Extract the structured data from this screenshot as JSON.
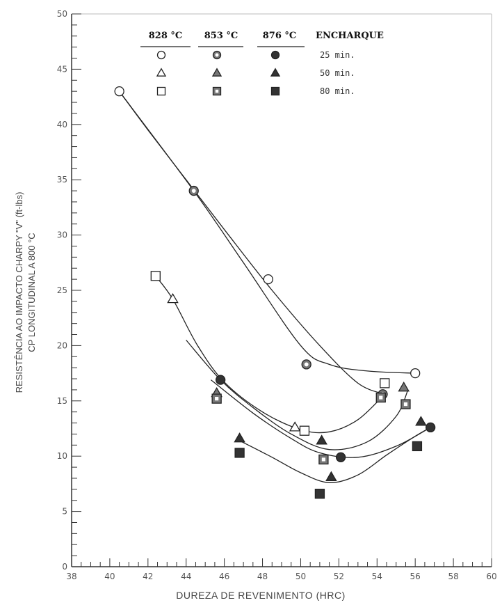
{
  "chart_data": {
    "type": "scatter",
    "xlabel": "DUREZA DE REVENIMENTO (HRC)",
    "ylabel": [
      "RESISTÊNCIA AO IMPACTO CHARPY \"V\" (ft-lbs)",
      "CP LONGITUDINAL A 800 °C"
    ],
    "xlim": [
      38,
      60
    ],
    "ylim": [
      0,
      50
    ],
    "x_ticks": [
      38,
      40,
      42,
      44,
      46,
      48,
      50,
      52,
      54,
      56,
      58,
      60
    ],
    "y_ticks": [
      0,
      5,
      10,
      15,
      20,
      25,
      30,
      35,
      40,
      45,
      50
    ],
    "y_tick_labels": [
      "0",
      "5",
      "10",
      "15",
      "20",
      "25",
      "30",
      "35",
      "40",
      "45",
      "50"
    ],
    "legend": {
      "headers": [
        "828 °C",
        "853 °C",
        "876 °C",
        "ENCHARQUE"
      ],
      "times": [
        "25 min.",
        "50 min.",
        "80 min."
      ]
    },
    "series": [
      {
        "temperature": "828 °C",
        "time": "25 min.",
        "marker": "circle",
        "fill": "open",
        "points": [
          [
            40.5,
            43
          ],
          [
            48.3,
            26
          ],
          [
            56.0,
            17.5
          ]
        ]
      },
      {
        "temperature": "853 °C",
        "time": "25 min.",
        "marker": "circle",
        "fill": "half",
        "points": [
          [
            44.4,
            34
          ],
          [
            50.3,
            18.3
          ],
          [
            54.3,
            15.6
          ]
        ]
      },
      {
        "temperature": "876 °C",
        "time": "25 min.",
        "marker": "circle",
        "fill": "solid",
        "points": [
          [
            45.8,
            16.9
          ],
          [
            52.1,
            9.9
          ],
          [
            56.8,
            12.6
          ]
        ]
      },
      {
        "temperature": "828 °C",
        "time": "50 min.",
        "marker": "triangle",
        "fill": "open",
        "points": [
          [
            43.3,
            24.2
          ],
          [
            49.7,
            12.6
          ]
        ]
      },
      {
        "temperature": "853 °C",
        "time": "50 min.",
        "marker": "triangle",
        "fill": "half",
        "points": [
          [
            45.6,
            15.7
          ],
          [
            55.4,
            16.2
          ]
        ]
      },
      {
        "temperature": "876 °C",
        "time": "50 min.",
        "marker": "triangle",
        "fill": "solid",
        "points": [
          [
            46.8,
            11.6
          ],
          [
            51.1,
            11.4
          ],
          [
            51.6,
            8.1
          ],
          [
            56.3,
            13.1
          ]
        ]
      },
      {
        "temperature": "828 °C",
        "time": "80 min.",
        "marker": "square",
        "fill": "open",
        "points": [
          [
            42.4,
            26.3
          ],
          [
            50.2,
            12.3
          ],
          [
            54.4,
            16.6
          ]
        ]
      },
      {
        "temperature": "853 °C",
        "time": "80 min.",
        "marker": "square",
        "fill": "half",
        "points": [
          [
            45.6,
            15.2
          ],
          [
            51.2,
            9.7
          ],
          [
            54.2,
            15.3
          ],
          [
            55.5,
            14.7
          ]
        ]
      },
      {
        "temperature": "876 °C",
        "time": "80 min.",
        "marker": "square",
        "fill": "solid",
        "points": [
          [
            46.8,
            10.3
          ],
          [
            51.0,
            6.6
          ],
          [
            56.1,
            10.9
          ]
        ]
      }
    ],
    "curves": [
      [
        [
          40.5,
          43
        ],
        [
          44.4,
          34
        ],
        [
          47.0,
          27.5
        ],
        [
          50.0,
          20.0
        ],
        [
          51.5,
          18.3
        ],
        [
          53.5,
          17.7
        ],
        [
          56.0,
          17.5
        ]
      ],
      [
        [
          40.5,
          43
        ],
        [
          42.0,
          39.5
        ],
        [
          44.0,
          35.0
        ],
        [
          46.0,
          30.5
        ],
        [
          48.5,
          25.0
        ],
        [
          51.0,
          20.0
        ],
        [
          53.0,
          16.6
        ],
        [
          54.4,
          15.6
        ]
      ],
      [
        [
          42.4,
          26.3
        ],
        [
          43.3,
          24.2
        ],
        [
          44.6,
          20.0
        ],
        [
          46.0,
          16.7
        ],
        [
          48.0,
          14.0
        ],
        [
          50.0,
          12.4
        ],
        [
          51.5,
          12.2
        ],
        [
          53.0,
          13.3
        ],
        [
          54.4,
          15.6
        ]
      ],
      [
        [
          44.0,
          20.5
        ],
        [
          45.8,
          16.9
        ],
        [
          47.5,
          14.4
        ],
        [
          49.5,
          12.0
        ],
        [
          51.5,
          10.6
        ],
        [
          53.5,
          11.3
        ],
        [
          55.0,
          13.6
        ],
        [
          55.6,
          15.9
        ]
      ],
      [
        [
          45.3,
          16.9
        ],
        [
          47.5,
          13.9
        ],
        [
          49.5,
          11.6
        ],
        [
          51.0,
          10.3
        ],
        [
          53.0,
          9.9
        ],
        [
          55.0,
          10.9
        ],
        [
          56.8,
          12.6
        ]
      ],
      [
        [
          46.8,
          11.4
        ],
        [
          48.5,
          9.9
        ],
        [
          50.0,
          8.5
        ],
        [
          51.5,
          7.6
        ],
        [
          53.0,
          8.3
        ],
        [
          54.5,
          10.1
        ],
        [
          56.0,
          11.8
        ],
        [
          56.8,
          12.6
        ]
      ]
    ]
  }
}
